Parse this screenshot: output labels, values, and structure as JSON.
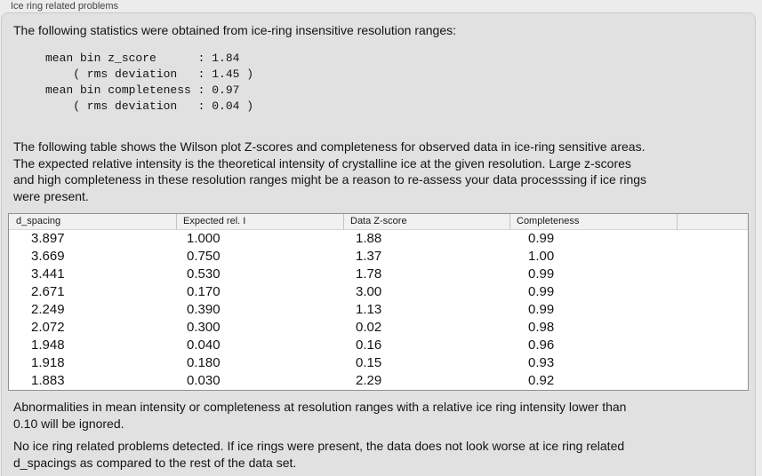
{
  "title": "Ice ring related problems",
  "colors": {
    "outer_bg": "#ececec",
    "panel_bg": "#e1e1e1",
    "panel_border": "#c9c9c9",
    "table_border": "#8f8f8f",
    "table_header_bg": "#f1f1f1",
    "table_row_bg": "#ffffff",
    "header_separator": "#c4c4c4",
    "text": "#141414",
    "label_text": "#444444"
  },
  "intro": "The following statistics were obtained from ice-ring insensitive resolution ranges:",
  "stats_block": "mean bin z_score      : 1.84\n    ( rms deviation   : 1.45 )\nmean bin completeness : 0.97\n    ( rms deviation   : 0.04 )",
  "stats": {
    "mean_bin_z_score": "1.84",
    "z_score_rms_deviation": "1.45",
    "mean_bin_completeness": "0.97",
    "completeness_rms_deviation": "0.04"
  },
  "description": "The following table shows the Wilson plot Z-scores and completeness for observed data in ice-ring sensitive areas.\nThe expected relative intensity is the theoretical intensity of crystalline ice at the given resolution. Large z-scores\nand high completeness in these resolution ranges might be a reason to re-assess your data processsing if ice rings\nwere present.",
  "table": {
    "columns": [
      "d_spacing",
      "Expected rel. I",
      "Data Z-score",
      "Completeness"
    ],
    "rows": [
      [
        "3.897",
        "1.000",
        "1.88",
        "0.99"
      ],
      [
        "3.669",
        "0.750",
        "1.37",
        "1.00"
      ],
      [
        "3.441",
        "0.530",
        "1.78",
        "0.99"
      ],
      [
        "2.671",
        "0.170",
        "3.00",
        "0.99"
      ],
      [
        "2.249",
        "0.390",
        "1.13",
        "0.99"
      ],
      [
        "2.072",
        "0.300",
        "0.02",
        "0.98"
      ],
      [
        "1.948",
        "0.040",
        "0.16",
        "0.96"
      ],
      [
        "1.918",
        "0.180",
        "0.15",
        "0.93"
      ],
      [
        "1.883",
        "0.030",
        "2.29",
        "0.92"
      ]
    ]
  },
  "ignore_note": "Abnormalities in mean intensity or completeness at resolution ranges with a relative ice ring intensity lower than\n0.10 will be ignored.",
  "conclusion": "No ice ring related problems detected. If ice rings were present, the data does not look worse at ice ring related\nd_spacings as compared to the rest of the data set."
}
